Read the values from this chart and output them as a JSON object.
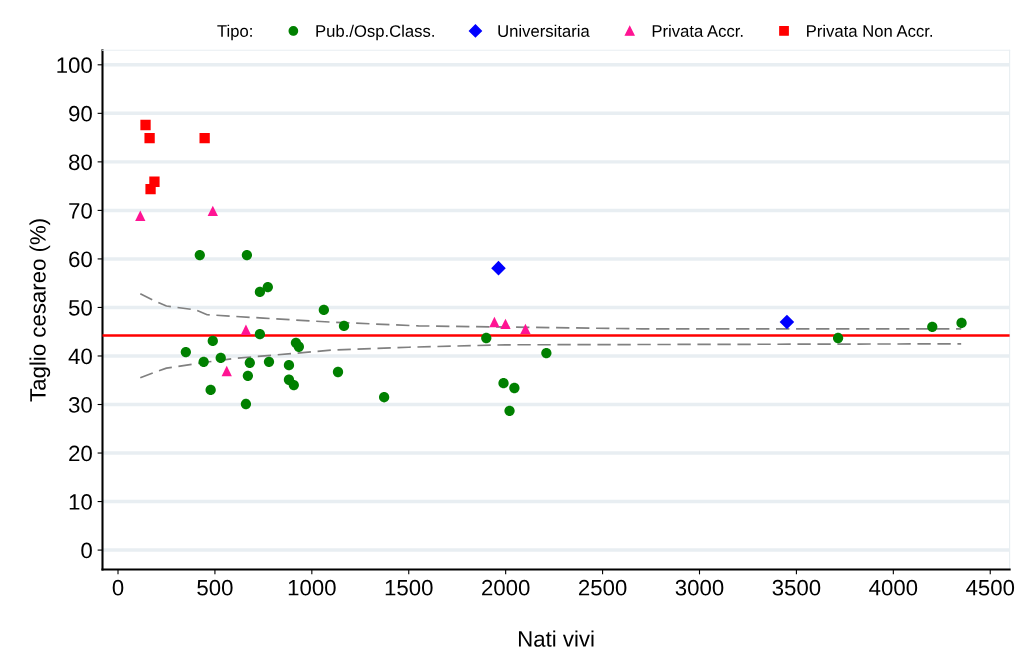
{
  "chart_data": {
    "type": "scatter",
    "xlabel": "Nati vivi",
    "ylabel": "Taglio cesareo (%)",
    "legend_title": "Tipo:",
    "legend": "top",
    "grid": "y",
    "xlim": [
      -80,
      4600
    ],
    "ylim": [
      -4,
      103
    ],
    "xticks": [
      0,
      500,
      1000,
      1500,
      2000,
      2500,
      3000,
      3500,
      4000,
      4500
    ],
    "yticks": [
      0,
      10,
      20,
      30,
      40,
      50,
      60,
      70,
      80,
      90,
      100
    ],
    "ref_lines": [
      {
        "axis": "y",
        "value": 44.2,
        "color": "#ff0000",
        "line_style": "solid"
      }
    ],
    "series": [
      {
        "name": "Pub./Osp.Class.",
        "color": "#008000",
        "marker": "circle",
        "x": [
          422,
          665,
          732,
          773,
          1062,
          1166,
          732,
          489,
          350,
          442,
          530,
          680,
          779,
          882,
          918,
          933,
          670,
          882,
          907,
          1135,
          478,
          660,
          1373,
          1900,
          2210,
          1989,
          2045,
          2020,
          3715,
          4201,
          4352
        ],
        "values": [
          60.8,
          60.8,
          53.2,
          54.2,
          49.5,
          46.2,
          44.5,
          43.1,
          40.8,
          38.8,
          39.6,
          38.6,
          38.8,
          38.1,
          42.7,
          41.9,
          35.9,
          35.1,
          34.0,
          36.7,
          33.0,
          30.1,
          31.5,
          43.7,
          40.6,
          34.4,
          33.4,
          28.7,
          43.7,
          46.0,
          46.8
        ]
      },
      {
        "name": "Universitaria",
        "color": "#0000ff",
        "marker": "diamond",
        "x": [
          1963,
          3451
        ],
        "values": [
          58.1,
          47.0
        ]
      },
      {
        "name": "Privata Accr.",
        "color": "#ff1493",
        "marker": "triangle",
        "x": [
          115,
          489,
          660,
          561,
          1942,
          1999,
          2102
        ],
        "values": [
          68.9,
          69.9,
          45.4,
          36.9,
          47.0,
          46.6,
          45.6
        ]
      },
      {
        "name": "Privata Non Accr.",
        "color": "#ff0000",
        "marker": "square",
        "x": [
          142,
          163,
          447,
          188,
          168
        ],
        "values": [
          87.6,
          84.9,
          84.9,
          75.9,
          74.4
        ]
      },
      {
        "type": "line",
        "color": "#808080",
        "line_style": "dashed",
        "x": [
          115,
          180,
          250,
          400,
          460,
          750,
          1090,
          1550,
          2700,
          4350
        ],
        "values": [
          52.8,
          51.5,
          50.3,
          49.5,
          48.5,
          47.8,
          47.0,
          46.2,
          45.6,
          45.6
        ]
      },
      {
        "type": "line",
        "color": "#808080",
        "line_style": "dashed",
        "x": [
          115,
          180,
          250,
          450,
          600,
          900,
          1100,
          1500,
          2000,
          4350
        ],
        "values": [
          35.5,
          36.5,
          37.5,
          38.7,
          39.5,
          40.5,
          41.2,
          41.8,
          42.3,
          42.5
        ]
      }
    ]
  }
}
